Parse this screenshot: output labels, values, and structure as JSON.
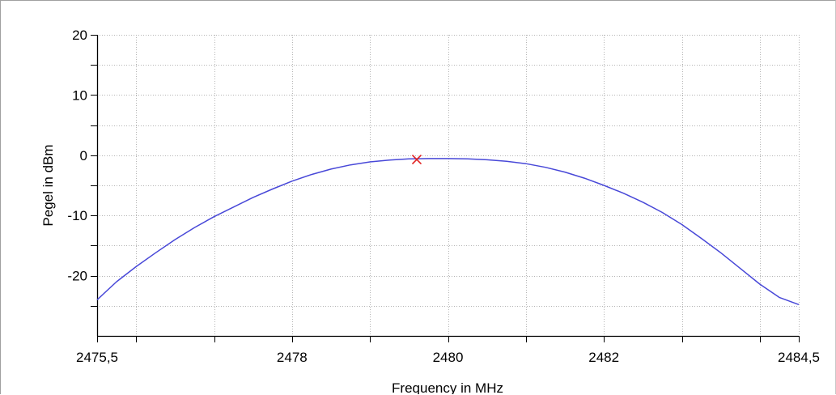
{
  "chart_data": {
    "type": "line",
    "title": "",
    "xlabel": "Frequency in MHz",
    "ylabel": "Pegel in dBm",
    "xlim": [
      2475.5,
      2484.5
    ],
    "ylim": [
      -30,
      20
    ],
    "x_tick_labels": [
      {
        "value": 2475.5,
        "label": "2475,5"
      },
      {
        "value": 2478,
        "label": "2478"
      },
      {
        "value": 2480,
        "label": "2480"
      },
      {
        "value": 2482,
        "label": "2482"
      },
      {
        "value": 2484.5,
        "label": "2484,5"
      }
    ],
    "x_minor_ticks": [
      2476,
      2477,
      2479,
      2481,
      2483,
      2484
    ],
    "y_tick_labels": [
      {
        "value": 20,
        "label": "20"
      },
      {
        "value": 10,
        "label": "10"
      },
      {
        "value": 0,
        "label": "0"
      },
      {
        "value": -10,
        "label": "-10"
      },
      {
        "value": -20,
        "label": "-20"
      }
    ],
    "y_minor_ticks": [
      15,
      5,
      -5,
      -15,
      -25
    ],
    "grid": true,
    "grid_style": "dotted",
    "series": [
      {
        "color": "#4848d8",
        "x": [
          2475.5,
          2475.75,
          2476.0,
          2476.25,
          2476.5,
          2476.75,
          2477.0,
          2477.25,
          2477.5,
          2477.75,
          2478.0,
          2478.25,
          2478.5,
          2478.75,
          2479.0,
          2479.25,
          2479.5,
          2479.75,
          2480.0,
          2480.25,
          2480.5,
          2480.75,
          2481.0,
          2481.25,
          2481.5,
          2481.75,
          2482.0,
          2482.25,
          2482.5,
          2482.75,
          2483.0,
          2483.25,
          2483.5,
          2483.75,
          2484.0,
          2484.25,
          2484.5
        ],
        "y": [
          -24.0,
          -21.0,
          -18.5,
          -16.2,
          -14.0,
          -12.0,
          -10.2,
          -8.6,
          -7.0,
          -5.6,
          -4.3,
          -3.2,
          -2.3,
          -1.6,
          -1.1,
          -0.8,
          -0.6,
          -0.55,
          -0.55,
          -0.6,
          -0.75,
          -1.0,
          -1.4,
          -2.0,
          -2.8,
          -3.8,
          -5.0,
          -6.3,
          -7.8,
          -9.5,
          -11.5,
          -13.8,
          -16.2,
          -18.8,
          -21.4,
          -23.6,
          -24.8
        ]
      }
    ],
    "marker": {
      "x": 2479.6,
      "y": -0.7,
      "symbol": "x",
      "color": "#e02020"
    }
  }
}
